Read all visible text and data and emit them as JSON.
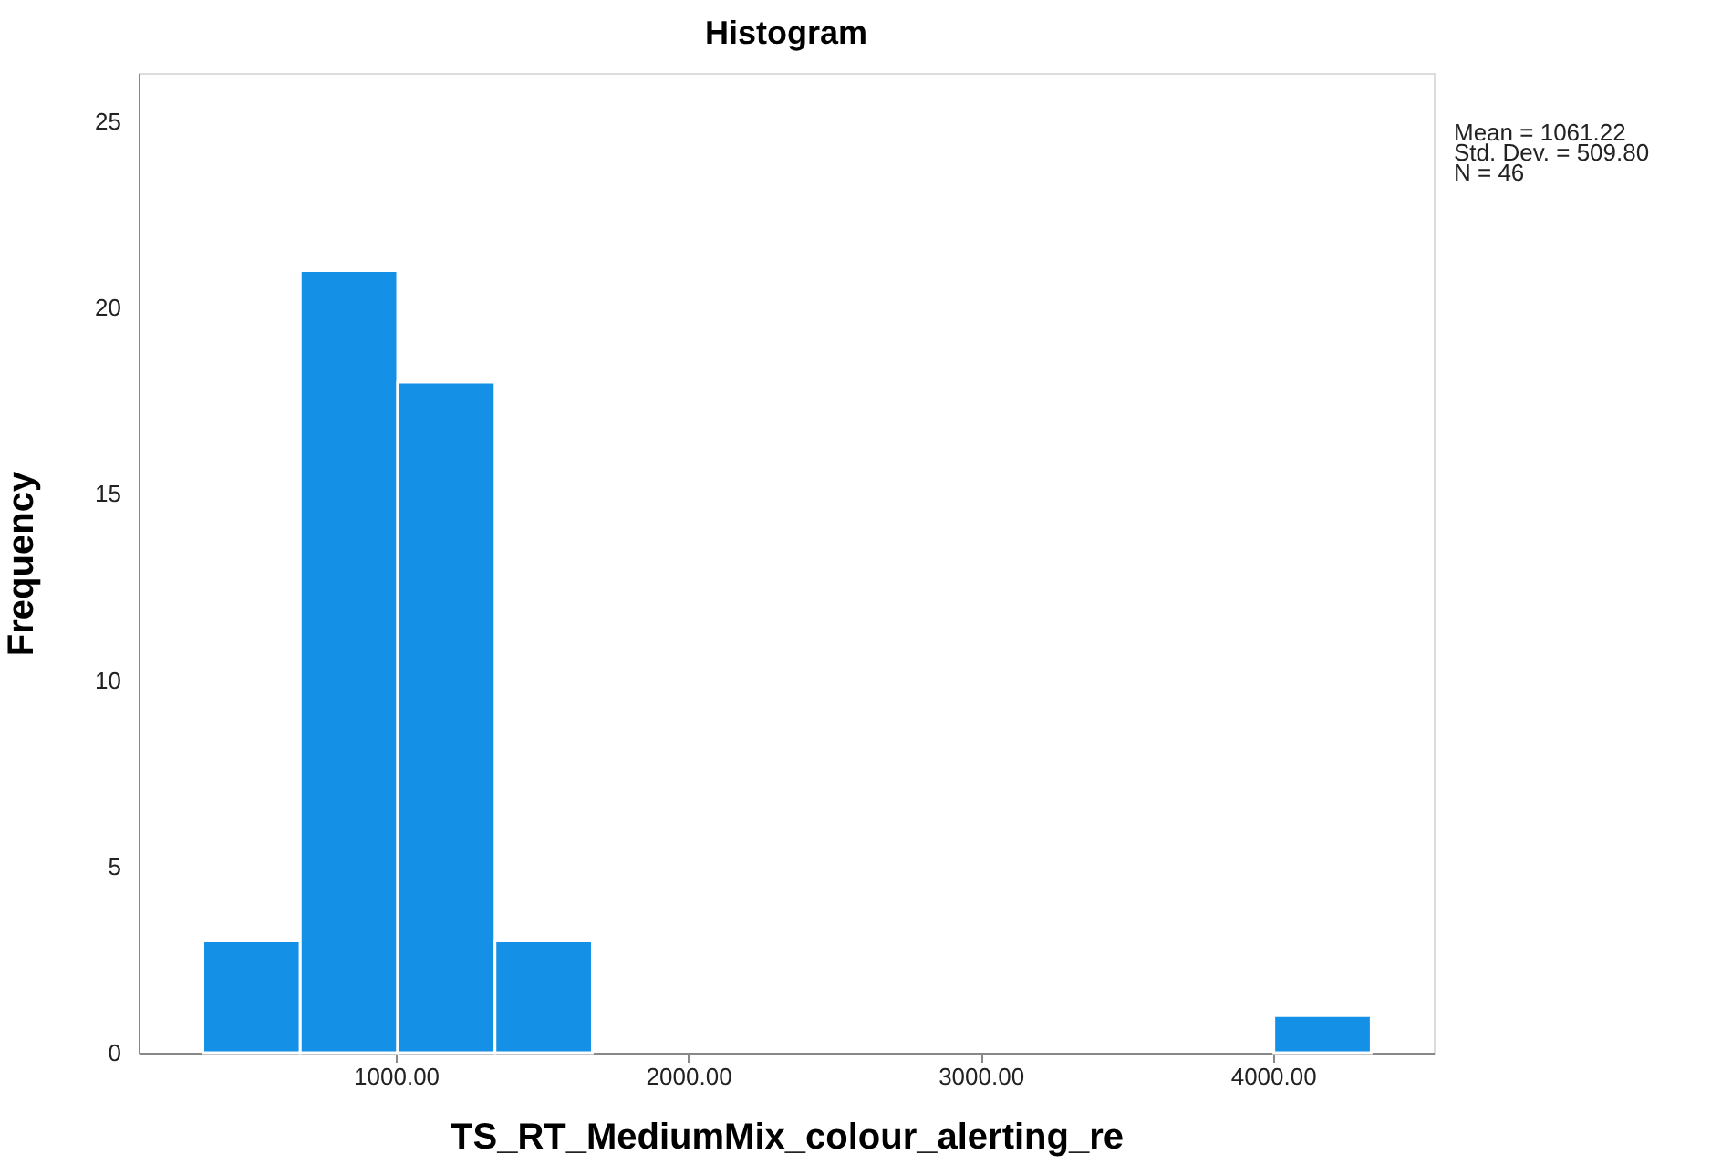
{
  "chart_data": {
    "type": "histogram",
    "title": "Histogram",
    "xlabel": "TS_RT_MediumMix_colour_alerting_re",
    "ylabel": "Frequency",
    "bins": [
      340,
      673,
      1006,
      1339,
      1672,
      2005,
      2338,
      2671,
      3004,
      3337,
      3670,
      4003,
      4336
    ],
    "values": [
      3,
      21,
      18,
      3,
      0,
      0,
      0,
      0,
      0,
      0,
      0,
      1
    ],
    "color": "#1490e6",
    "xlim": [
      120,
      4550
    ],
    "ylim": [
      0,
      26.3
    ],
    "xticks": [
      {
        "value": 1000,
        "label": "1000.00"
      },
      {
        "value": 2000,
        "label": "2000.00"
      },
      {
        "value": 3000,
        "label": "3000.00"
      },
      {
        "value": 4000,
        "label": "4000.00"
      }
    ],
    "yticks": [
      0,
      5,
      10,
      15,
      20,
      25
    ],
    "grid": false,
    "annotations": [
      "Mean = 1061.22",
      "Std. Dev. = 509.80",
      "N = 46"
    ]
  }
}
